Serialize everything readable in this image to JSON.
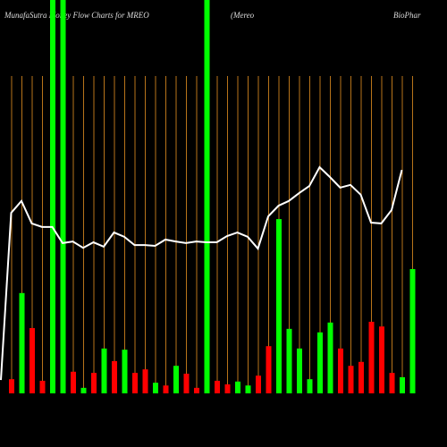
{
  "chart_data": {
    "type": "bar",
    "title": "MunafaSutra  Money Flow  Charts for MREO",
    "subtitle": [
      "(Mereo",
      "BioPhar"
    ],
    "categories": [
      null,
      null,
      null,
      null,
      null,
      null,
      null,
      null,
      null,
      null,
      null,
      null,
      null,
      null,
      null,
      null,
      null,
      null,
      null,
      null,
      null,
      null,
      null,
      null,
      null,
      null,
      null,
      null,
      null,
      null,
      null,
      null,
      null,
      null,
      null,
      null,
      null,
      null,
      null,
      null
    ],
    "values": [
      3.6,
      25.5,
      16.6,
      3.2,
      100,
      100,
      5.5,
      1.4,
      5.2,
      11.4,
      8.2,
      11.1,
      5.2,
      6.1,
      2.7,
      2.0,
      7.0,
      5.0,
      1.4,
      100,
      3.2,
      2.3,
      3.0,
      2.0,
      4.5,
      12.0,
      44.3,
      16.4,
      11.4,
      3.6,
      15.5,
      18.0,
      11.4,
      7.0,
      8.0,
      18.2,
      17.0,
      5.2,
      4.1,
      31.6
    ],
    "bar_colors": [
      "#ff0000",
      "#00ff00",
      "#ff0000",
      "#ff0000",
      "#00ff00",
      "#00ff00",
      "#ff0000",
      "#00ff00",
      "#ff0000",
      "#00ff00",
      "#ff0000",
      "#00ff00",
      "#ff0000",
      "#ff0000",
      "#00ff00",
      "#ff0000",
      "#00ff00",
      "#ff0000",
      "#ff0000",
      "#00ff00",
      "#ff0000",
      "#ff0000",
      "#00ff00",
      "#00ff00",
      "#ff0000",
      "#ff0000",
      "#00ff00",
      "#00ff00",
      "#00ff00",
      "#00ff00",
      "#00ff00",
      "#00ff00",
      "#ff0000",
      "#ff0000",
      "#ff0000",
      "#ff0000",
      "#ff0000",
      "#ff0000",
      "#00ff00",
      "#00ff00"
    ],
    "line": {
      "color": "#ffffff",
      "values": [
        3.4,
        45.9,
        48.9,
        43.2,
        42.3,
        42.3,
        38.2,
        38.6,
        37.0,
        38.4,
        37.3,
        40.9,
        39.8,
        37.7,
        37.7,
        37.5,
        39.1,
        38.6,
        38.2,
        38.6,
        38.4,
        38.4,
        40.0,
        40.9,
        39.8,
        36.8,
        45.0,
        47.7,
        48.9,
        50.9,
        52.7,
        57.5,
        55.0,
        52.3,
        53.0,
        50.5,
        43.4,
        43.2,
        46.6,
        56.8
      ]
    },
    "gridline_color": "#b8741a",
    "ylim": [
      0,
      100
    ]
  }
}
